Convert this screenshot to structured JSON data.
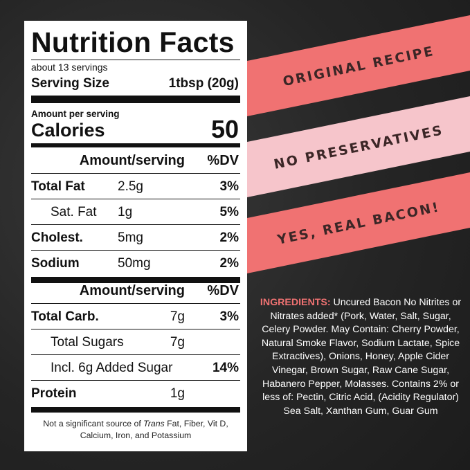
{
  "nutrition_label": {
    "title": "Nutrition Facts",
    "servings": "about 13 servings",
    "serving_size_label": "Serving Size",
    "serving_size": "1tbsp (20g)",
    "amount_per_serving": "Amount per serving",
    "calories_label": "Calories",
    "calories": "50",
    "sections": [
      {
        "header": {
          "amount": "Amount/serving",
          "dv": "%DV"
        },
        "rows": [
          {
            "name": "Total Fat",
            "amount": "2.5g",
            "dv": "3%"
          },
          {
            "name": "Sat. Fat",
            "amount": "1g",
            "dv": "5%"
          },
          {
            "name": "Cholest.",
            "amount": "5mg",
            "dv": "2%"
          },
          {
            "name": "Sodium",
            "amount": "50mg",
            "dv": "2%"
          }
        ]
      },
      {
        "header": {
          "amount": "Amount/serving",
          "dv": "%DV"
        },
        "rows": [
          {
            "name": "Total Carb.",
            "amount": "7g",
            "dv": "3%"
          },
          {
            "name": "Total Sugars",
            "amount": "7g"
          },
          {
            "name": "Incl. 6g Added Sugar",
            "dv": "14%"
          },
          {
            "name": "Protein",
            "amount": "1g"
          }
        ]
      }
    ],
    "footnote": {
      "before": "Not a significant source of ",
      "italic": "Trans",
      "after": " Fat, Fiber, Vit D, Calcium, Iron, and Potassium"
    }
  },
  "banners": [
    "ORIGINAL RECIPE",
    "NO PRESERVATIVES",
    "YES, REAL BACON!"
  ],
  "ingredients": {
    "label": "INGREDIENTS:",
    "text": " Uncured Bacon No Nitrites or Nitrates added* (Pork, Water, Salt, Sugar, Celery Powder. May Contain: Cherry Powder, Natural Smoke Flavor, Sodium Lactate, Spice Extractives), Onions, Honey, Apple Cider Vinegar, Brown Sugar, Raw Cane Sugar, Habanero Pepper, Molasses. Contains 2% or less of: Pectin, Citric Acid, (Acidity Regulator) Sea Salt, Xanthan Gum, Guar Gum"
  }
}
